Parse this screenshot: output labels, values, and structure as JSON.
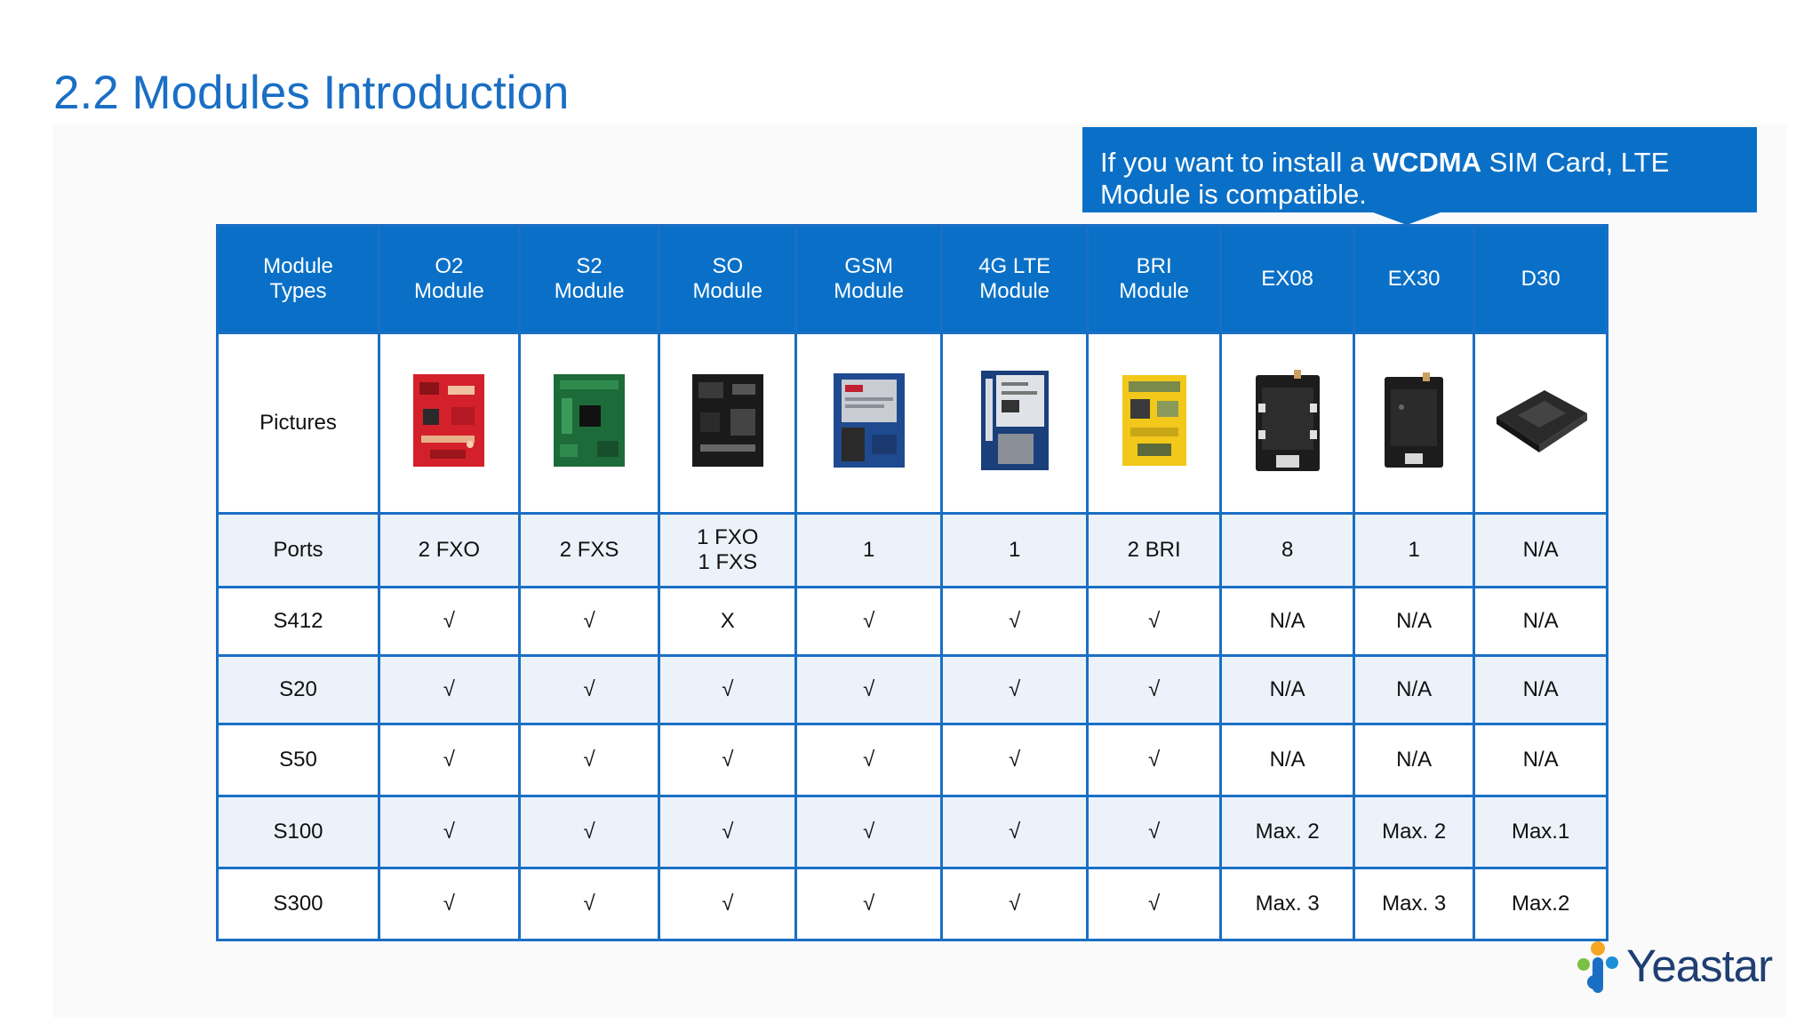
{
  "title": "2.2 Modules Introduction",
  "callout": {
    "text_before": "If you want to install a ",
    "text_bold": "WCDMA",
    "text_after": " SIM Card, LTE Module is compatible."
  },
  "table": {
    "headers": [
      "Module Types",
      "O2 Module",
      "S2 Module",
      "SO Module",
      "GSM Module",
      "4G LTE Module",
      "BRI Module",
      "EX08",
      "EX30",
      "D30"
    ],
    "pictures_label": "Pictures",
    "rows": [
      {
        "label": "Ports",
        "cells": [
          "2 FXO",
          "2 FXS",
          "1 FXO 1 FXS",
          "1",
          "1",
          "2 BRI",
          "8",
          "1",
          "N/A"
        ]
      },
      {
        "label": "S412",
        "cells": [
          "√",
          "√",
          "X",
          "√",
          "√",
          "√",
          "N/A",
          "N/A",
          "N/A"
        ]
      },
      {
        "label": "S20",
        "cells": [
          "√",
          "√",
          "√",
          "√",
          "√",
          "√",
          "N/A",
          "N/A",
          "N/A"
        ]
      },
      {
        "label": "S50",
        "cells": [
          "√",
          "√",
          "√",
          "√",
          "√",
          "√",
          "N/A",
          "N/A",
          "N/A"
        ]
      },
      {
        "label": "S100",
        "cells": [
          "√",
          "√",
          "√",
          "√",
          "√",
          "√",
          "Max. 2",
          "Max. 2",
          "Max.1"
        ]
      },
      {
        "label": "S300",
        "cells": [
          "√",
          "√",
          "√",
          "√",
          "√",
          "√",
          "Max. 3",
          "Max. 3",
          "Max.2"
        ]
      }
    ]
  },
  "logo": {
    "text": "Yeastar"
  },
  "colors": {
    "accent": "#0a70c7",
    "title": "#1a6fc4",
    "row_alt": "#ecf2fa",
    "o2_board": "#d4202a",
    "s2_board": "#1e6b3a",
    "so_board": "#1a1a1a",
    "bri_board": "#f2c81a"
  }
}
